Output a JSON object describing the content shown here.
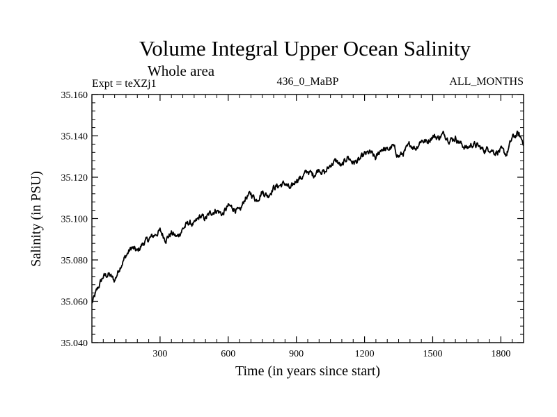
{
  "chart_data": {
    "type": "line",
    "title": "Volume Integral Upper Ocean Salinity",
    "subtitle": "Whole area",
    "experiment_label": "Expt = teXZj1",
    "period_label": "436_0_MaBP",
    "months_label": "ALL_MONTHS",
    "xlabel": "Time (in years since start)",
    "ylabel": "Salinity (in PSU)",
    "xlim": [
      0,
      1900
    ],
    "ylim": [
      35.04,
      35.16
    ],
    "x_ticks": [
      300,
      600,
      900,
      1200,
      1500,
      1800
    ],
    "x_tick_labels": [
      "300",
      "600",
      "900",
      "1200",
      "1500",
      "1800"
    ],
    "y_ticks": [
      35.04,
      35.06,
      35.08,
      35.1,
      35.12,
      35.14,
      35.16
    ],
    "y_tick_labels": [
      "35.040",
      "35.060",
      "35.080",
      "35.100",
      "35.120",
      "35.140",
      "35.160"
    ],
    "grid": false,
    "series": [
      {
        "name": "Salinity",
        "color": "#000000",
        "x": [
          0,
          25,
          50,
          75,
          100,
          125,
          150,
          175,
          200,
          225,
          250,
          275,
          300,
          325,
          350,
          375,
          400,
          425,
          450,
          475,
          500,
          525,
          550,
          575,
          600,
          625,
          650,
          675,
          700,
          725,
          750,
          775,
          800,
          825,
          850,
          875,
          900,
          925,
          950,
          975,
          1000,
          1025,
          1050,
          1075,
          1100,
          1125,
          1150,
          1175,
          1200,
          1225,
          1250,
          1275,
          1300,
          1325,
          1350,
          1375,
          1400,
          1425,
          1450,
          1475,
          1500,
          1525,
          1550,
          1575,
          1600,
          1625,
          1650,
          1675,
          1700,
          1725,
          1750,
          1775,
          1800,
          1825,
          1850,
          1875,
          1900
        ],
        "values": [
          35.059,
          35.066,
          35.072,
          35.073,
          35.07,
          35.077,
          35.082,
          35.086,
          35.084,
          35.088,
          35.09,
          35.092,
          35.094,
          35.09,
          35.093,
          35.091,
          35.095,
          35.098,
          35.097,
          35.101,
          35.1,
          35.103,
          35.104,
          35.102,
          35.106,
          35.105,
          35.103,
          35.11,
          35.112,
          35.109,
          35.113,
          35.111,
          35.115,
          35.116,
          35.117,
          35.114,
          35.119,
          35.12,
          35.123,
          35.121,
          35.124,
          35.122,
          35.126,
          35.128,
          35.125,
          35.13,
          35.127,
          35.128,
          35.131,
          35.132,
          35.129,
          35.134,
          35.133,
          35.135,
          35.13,
          35.132,
          35.136,
          35.134,
          35.138,
          35.137,
          35.14,
          35.139,
          35.141,
          35.138,
          35.139,
          35.136,
          35.134,
          35.136,
          35.135,
          35.133,
          35.134,
          35.132,
          35.133,
          35.131,
          35.139,
          35.141,
          35.137
        ]
      }
    ]
  }
}
